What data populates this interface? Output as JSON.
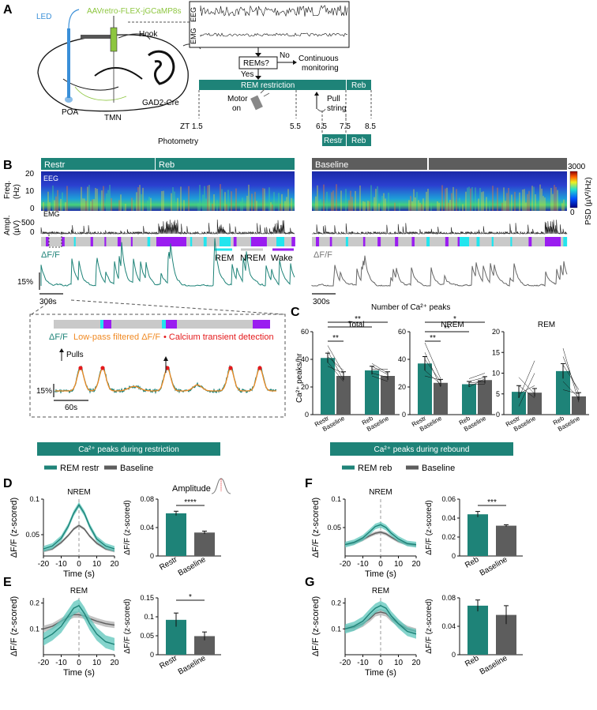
{
  "colors": {
    "teal": "#1e8378",
    "teal_light": "#5cc6bb",
    "gray": "#5d5d5d",
    "gray_light": "#b0b0b0",
    "orange": "#f08a24",
    "red": "#e41a1c",
    "green_label": "#8dc63f",
    "blue_label": "#3a8fd8",
    "cyan": "#22e5ee",
    "purple": "#9a1df0",
    "sleep_gray": "#c9c9c9"
  },
  "panel_letters": [
    "A",
    "B",
    "C",
    "D",
    "E",
    "F",
    "G"
  ],
  "panelA": {
    "led": "LED",
    "virus": "AAVretro-FLEX-jGCaMP8s",
    "hook": "Hook",
    "poa": "POA",
    "gad2": "GAD2-Cre",
    "tmn": "TMN",
    "eeg": "EEG",
    "emg": "EMG",
    "rems_question": "REMs?",
    "no": "No",
    "yes": "Yes",
    "continuous_1": "Continuous",
    "continuous_2": "monitoring",
    "rem_restriction": "REM restriction",
    "reb": "Reb",
    "motor_1": "Motor",
    "motor_2": "on",
    "pull_1": "Pull",
    "pull_2": "string",
    "zt": "ZT 1.5",
    "ticks": [
      "5.5",
      "6.5",
      "7.5",
      "8.5"
    ],
    "photometry": "Photometry",
    "restr": "Restr",
    "reb2": "Reb"
  },
  "panelB": {
    "restr": "Restr",
    "reb": "Reb",
    "baseline": "Baseline",
    "eeg": "EEG",
    "emg": "EMG",
    "freq_label": "Freq.",
    "hz": "(Hz)",
    "freq_ticks": [
      "20",
      "10",
      "0"
    ],
    "ampl_label": "Ampl.",
    "uv": "(µV)",
    "ampl_ticks": [
      "500",
      "0"
    ],
    "psd_max": "3000",
    "psd_min": "0",
    "psd_label": "PSD (µV²/Hz)",
    "dff_left": "ΔF/F",
    "dff_right": "ΔF/F",
    "legend_rem": "REM",
    "legend_nrem": "NREM",
    "legend_wake": "Wake",
    "scale_pct": "15%",
    "scale_time_left": "300s",
    "scale_time_right": "300s",
    "inset_dff": "ΔF/F",
    "inset_lowpass": "Low-pass filtered ΔF/F",
    "inset_transient": "• Calcium transient detection",
    "inset_pulls": "Pulls",
    "inset_pct": "15%",
    "inset_time": "60s"
  },
  "panelC_text": {
    "title": "Number of Ca²⁺ peaks",
    "ylabel": "Ca²⁺ peaks/hr"
  },
  "section_left": "Ca²⁺ peaks during restriction",
  "section_right": "Ca²⁺ peaks during rebound",
  "legend_left": {
    "a": "REM restr",
    "b": "Baseline"
  },
  "legend_right": {
    "a": "REM reb",
    "b": "Baseline"
  },
  "amplitude_label": "Amplitude",
  "chart_data": [
    {
      "id": "C_total",
      "type": "bar",
      "title": "Total",
      "categories": [
        "Restr",
        "Baseline",
        "Reb",
        "Baseline"
      ],
      "values": [
        41,
        28,
        32,
        28
      ],
      "errors": [
        3.5,
        3,
        3,
        3
      ],
      "ylim": [
        0,
        60
      ],
      "yticks": [
        0,
        20,
        40,
        60
      ],
      "ylabel": "Ca²⁺ peaks/hr",
      "significance": [
        "**",
        "*",
        "**"
      ]
    },
    {
      "id": "C_nrem",
      "type": "bar",
      "title": "NREM",
      "categories": [
        "Restr",
        "Baseline",
        "Reb",
        "Baseline"
      ],
      "values": [
        37,
        23,
        22,
        25
      ],
      "errors": [
        5,
        2.5,
        2,
        2.5
      ],
      "ylim": [
        0,
        60
      ],
      "yticks": [
        0,
        20,
        40,
        60
      ],
      "significance": [
        "**",
        "**",
        "*"
      ]
    },
    {
      "id": "C_rem",
      "type": "bar",
      "title": "REM",
      "categories": [
        "Restr",
        "Baseline",
        "Reb",
        "Baseline"
      ],
      "values": [
        5.5,
        5.3,
        10.5,
        4.4
      ],
      "errors": [
        1.5,
        1,
        1.8,
        0.9
      ],
      "ylim": [
        0,
        20
      ],
      "yticks": [
        0,
        5,
        10,
        15,
        20
      ]
    },
    {
      "id": "D_trace",
      "type": "line",
      "title": "NREM",
      "xlabel": "Time (s)",
      "ylabel": "ΔF/F (z-scored)",
      "xlim": [
        -20,
        20
      ],
      "ylim": [
        0.02,
        0.1
      ],
      "xticks": [
        -20,
        -10,
        0,
        10,
        20
      ],
      "yticks": [
        0.05,
        0.1
      ],
      "series": [
        {
          "name": "REM restr",
          "x": [
            -20,
            -15,
            -10,
            -6,
            -3,
            0,
            3,
            6,
            10,
            15,
            20
          ],
          "y": [
            0.03,
            0.034,
            0.045,
            0.062,
            0.08,
            0.092,
            0.08,
            0.062,
            0.044,
            0.034,
            0.03
          ],
          "band": 0.004
        },
        {
          "name": "Baseline",
          "x": [
            -20,
            -15,
            -10,
            -6,
            -3,
            0,
            3,
            6,
            10,
            15,
            20
          ],
          "y": [
            0.027,
            0.03,
            0.039,
            0.049,
            0.058,
            0.063,
            0.058,
            0.048,
            0.038,
            0.03,
            0.027
          ],
          "band": 0.002
        }
      ]
    },
    {
      "id": "D_bar",
      "type": "bar",
      "title": "Amplitude",
      "categories": [
        "Restr",
        "Baseline"
      ],
      "values": [
        0.06,
        0.033
      ],
      "errors": [
        0.003,
        0.002
      ],
      "ylim": [
        0,
        0.08
      ],
      "yticks": [
        0,
        0.04,
        0.08
      ],
      "ylabel": "ΔF/F (z-scored)",
      "significance": [
        "****"
      ]
    },
    {
      "id": "E_trace",
      "type": "line",
      "title": "REM",
      "xlabel": "Time (s)",
      "ylabel": "ΔF/F (z-scored)",
      "xlim": [
        -20,
        20
      ],
      "ylim": [
        0.0,
        0.22
      ],
      "xticks": [
        -20,
        -10,
        0,
        10,
        20
      ],
      "yticks": [
        0.1,
        0.2
      ],
      "series": [
        {
          "name": "REM restr",
          "x": [
            -20,
            -15,
            -10,
            -6,
            -3,
            0,
            3,
            6,
            10,
            15,
            20
          ],
          "y": [
            0.06,
            0.08,
            0.11,
            0.15,
            0.18,
            0.19,
            0.16,
            0.12,
            0.08,
            0.05,
            0.04
          ],
          "band": 0.025
        },
        {
          "name": "Baseline",
          "x": [
            -20,
            -15,
            -10,
            -6,
            -3,
            0,
            3,
            6,
            10,
            15,
            20
          ],
          "y": [
            0.1,
            0.11,
            0.13,
            0.145,
            0.155,
            0.155,
            0.15,
            0.14,
            0.13,
            0.12,
            0.115
          ],
          "band": 0.012
        }
      ]
    },
    {
      "id": "E_bar",
      "type": "bar",
      "categories": [
        "Restr",
        "Baseline"
      ],
      "values": [
        0.092,
        0.049
      ],
      "errors": [
        0.018,
        0.011
      ],
      "ylim": [
        0,
        0.15
      ],
      "yticks": [
        0,
        0.05,
        0.1,
        0.15
      ],
      "ylabel": "ΔF/F (z-scored)",
      "significance": [
        "*"
      ]
    },
    {
      "id": "F_trace",
      "type": "line",
      "title": "NREM",
      "xlabel": "Time (s)",
      "ylabel": "ΔF/F (z-scored)",
      "xlim": [
        -20,
        20
      ],
      "ylim": [
        0.0,
        0.1
      ],
      "xticks": [
        -20,
        -10,
        0,
        10,
        20
      ],
      "yticks": [
        0.05,
        0.1
      ],
      "series": [
        {
          "name": "REM reb",
          "x": [
            -20,
            -15,
            -10,
            -6,
            -3,
            0,
            3,
            6,
            10,
            15,
            20
          ],
          "y": [
            0.02,
            0.024,
            0.032,
            0.043,
            0.052,
            0.055,
            0.05,
            0.04,
            0.03,
            0.022,
            0.02
          ],
          "band": 0.005
        },
        {
          "name": "Baseline",
          "x": [
            -20,
            -15,
            -10,
            -6,
            -3,
            0,
            3,
            6,
            10,
            15,
            20
          ],
          "y": [
            0.02,
            0.023,
            0.029,
            0.036,
            0.04,
            0.042,
            0.039,
            0.033,
            0.026,
            0.021,
            0.019
          ],
          "band": 0.003
        }
      ]
    },
    {
      "id": "F_bar",
      "type": "bar",
      "categories": [
        "Reb",
        "Baseline"
      ],
      "values": [
        0.044,
        0.032
      ],
      "errors": [
        0.003,
        0.001
      ],
      "ylim": [
        0,
        0.06
      ],
      "yticks": [
        0,
        0.02,
        0.04,
        0.06
      ],
      "ylabel": "ΔF/F (z-scored)",
      "significance": [
        "***"
      ]
    },
    {
      "id": "G_trace",
      "type": "line",
      "title": "REM",
      "xlabel": "Time (s)",
      "ylabel": "ΔF/F (z-scored)",
      "xlim": [
        -20,
        20
      ],
      "ylim": [
        0.0,
        0.22
      ],
      "xticks": [
        -20,
        -10,
        0,
        10,
        20
      ],
      "yticks": [
        0.1,
        0.2
      ],
      "series": [
        {
          "name": "REM reb",
          "x": [
            -20,
            -15,
            -10,
            -6,
            -3,
            0,
            3,
            6,
            10,
            15,
            20
          ],
          "y": [
            0.1,
            0.11,
            0.13,
            0.16,
            0.18,
            0.19,
            0.18,
            0.15,
            0.12,
            0.09,
            0.08
          ],
          "band": 0.018
        },
        {
          "name": "Baseline",
          "x": [
            -20,
            -15,
            -10,
            -6,
            -3,
            0,
            3,
            6,
            10,
            15,
            20
          ],
          "y": [
            0.1,
            0.105,
            0.12,
            0.14,
            0.16,
            0.165,
            0.16,
            0.14,
            0.12,
            0.1,
            0.09
          ],
          "band": 0.012
        }
      ]
    },
    {
      "id": "G_bar",
      "type": "bar",
      "categories": [
        "Reb",
        "Baseline"
      ],
      "values": [
        0.069,
        0.056
      ],
      "errors": [
        0.008,
        0.013
      ],
      "ylim": [
        0,
        0.08
      ],
      "yticks": [
        0,
        0.04,
        0.08
      ],
      "ylabel": "ΔF/F (z-scored)"
    }
  ]
}
